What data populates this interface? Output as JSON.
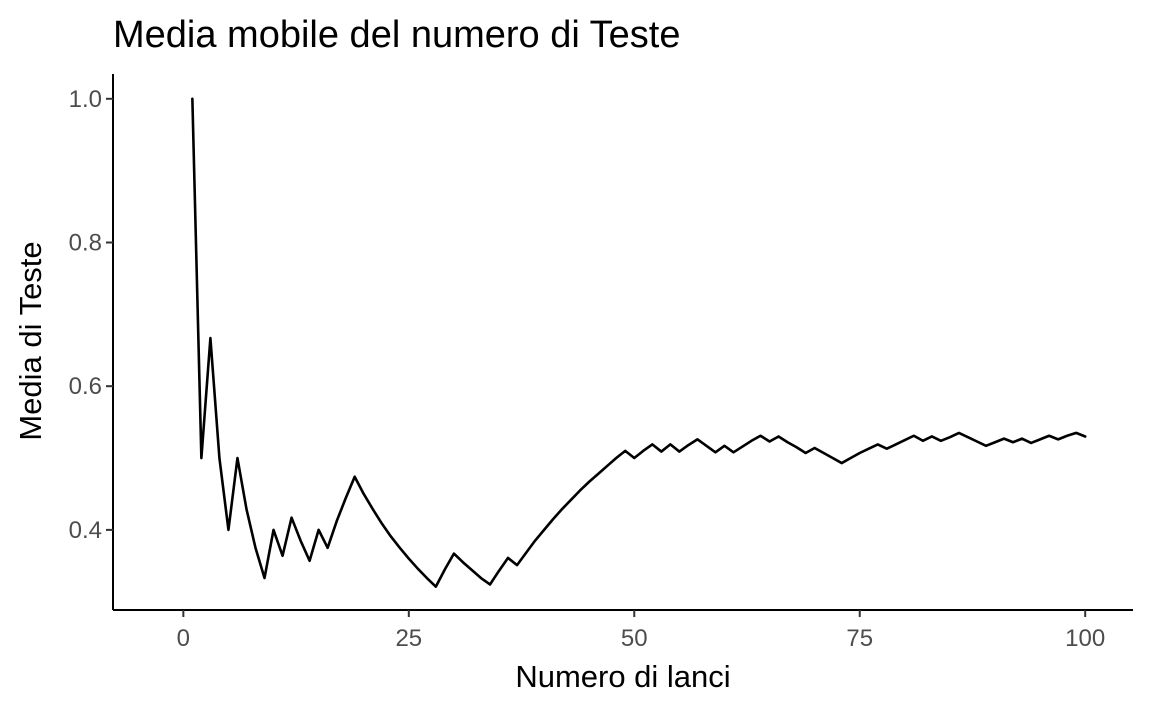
{
  "chart_data": {
    "type": "line",
    "title": "Media mobile del numero di Teste",
    "xlabel": "Numero di lanci",
    "ylabel": "Media di Teste",
    "xlim": [
      -7.8,
      105.3
    ],
    "ylim": [
      0.2885,
      1.0345
    ],
    "x_ticks": [
      0,
      25,
      50,
      75,
      100
    ],
    "x_tick_labels": [
      "0",
      "25",
      "50",
      "75",
      "100"
    ],
    "y_ticks": [
      0.4,
      0.6,
      0.8,
      1.0
    ],
    "y_tick_labels": [
      "0.4",
      "0.6",
      "0.8",
      "1.0"
    ],
    "grid": false,
    "legend": "none",
    "series_color": "#000000",
    "series": [
      {
        "x": [
          1,
          2,
          3,
          4,
          5,
          6,
          7,
          8,
          9,
          10,
          11,
          12,
          13,
          14,
          15,
          16,
          17,
          18,
          19,
          20,
          21,
          22,
          23,
          24,
          25,
          26,
          27,
          28,
          29,
          30,
          31,
          32,
          33,
          34,
          35,
          36,
          37,
          38,
          39,
          40,
          41,
          42,
          43,
          44,
          45,
          46,
          47,
          48,
          49,
          50,
          51,
          52,
          53,
          54,
          55,
          56,
          57,
          58,
          59,
          60,
          61,
          62,
          63,
          64,
          65,
          66,
          67,
          68,
          69,
          70,
          71,
          72,
          73,
          74,
          75,
          76,
          77,
          78,
          79,
          80,
          81,
          82,
          83,
          84,
          85,
          86,
          87,
          88,
          89,
          90,
          91,
          92,
          93,
          94,
          95,
          96,
          97,
          98,
          99,
          100
        ],
        "values": [
          1.0,
          0.5,
          0.667,
          0.5,
          0.4,
          0.5,
          0.429,
          0.375,
          0.333,
          0.4,
          0.364,
          0.417,
          0.385,
          0.357,
          0.4,
          0.375,
          0.412,
          0.444,
          0.474,
          0.45,
          0.429,
          0.409,
          0.391,
          0.375,
          0.36,
          0.346,
          0.333,
          0.321,
          0.345,
          0.367,
          0.355,
          0.344,
          0.333,
          0.324,
          0.343,
          0.361,
          0.351,
          0.368,
          0.385,
          0.4,
          0.415,
          0.429,
          0.442,
          0.455,
          0.467,
          0.478,
          0.489,
          0.5,
          0.51,
          0.5,
          0.51,
          0.519,
          0.509,
          0.519,
          0.509,
          0.518,
          0.526,
          0.517,
          0.508,
          0.517,
          0.508,
          0.516,
          0.524,
          0.531,
          0.523,
          0.53,
          0.522,
          0.515,
          0.507,
          0.514,
          0.507,
          0.5,
          0.493,
          0.5,
          0.507,
          0.513,
          0.519,
          0.513,
          0.519,
          0.525,
          0.531,
          0.524,
          0.53,
          0.524,
          0.529,
          0.535,
          0.529,
          0.523,
          0.517,
          0.522,
          0.527,
          0.522,
          0.527,
          0.521,
          0.526,
          0.531,
          0.526,
          0.531,
          0.535,
          0.53
        ]
      }
    ]
  }
}
